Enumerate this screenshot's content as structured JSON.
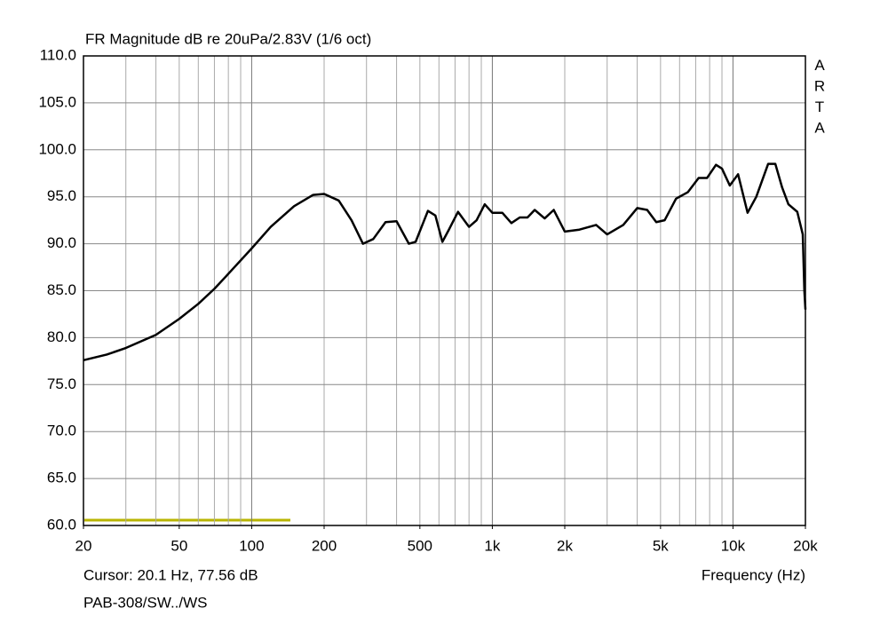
{
  "chart_data": {
    "type": "line",
    "log_x": true,
    "grid": true,
    "title": "FR Magnitude dB re 20uPa/2.83V (1/6 oct)",
    "watermark": "ARTA",
    "cursor": "Cursor: 20.1 Hz, 77.56 dB",
    "xlabel": "Frequency (Hz)",
    "footer": "PAB-308/SW../WS",
    "xlim": [
      20,
      20000
    ],
    "ylim": [
      60,
      110
    ],
    "xticks": [
      20,
      50,
      100,
      200,
      500,
      {
        "value": 1000,
        "label": "1k"
      },
      {
        "value": 2000,
        "label": "2k"
      },
      {
        "value": 5000,
        "label": "5k"
      },
      {
        "value": 10000,
        "label": "10k"
      },
      {
        "value": 20000,
        "label": "20k"
      }
    ],
    "yticks": [
      {
        "value": 60,
        "label": "60.0"
      },
      {
        "value": 65,
        "label": "65.0"
      },
      {
        "value": 70,
        "label": "70.0"
      },
      {
        "value": 75,
        "label": "75.0"
      },
      {
        "value": 80,
        "label": "80.0"
      },
      {
        "value": 85,
        "label": "85.0"
      },
      {
        "value": 90,
        "label": "90.0"
      },
      {
        "value": 95,
        "label": "95.0"
      },
      {
        "value": 100,
        "label": "100.0"
      },
      {
        "value": 105,
        "label": "105.0"
      },
      {
        "value": 110,
        "label": "110.0"
      }
    ],
    "x": [
      20,
      25,
      30,
      40,
      50,
      60,
      70,
      80,
      100,
      120,
      150,
      180,
      200,
      230,
      260,
      290,
      320,
      360,
      400,
      450,
      480,
      540,
      580,
      620,
      660,
      720,
      800,
      860,
      930,
      1000,
      1100,
      1200,
      1300,
      1400,
      1500,
      1650,
      1800,
      2000,
      2300,
      2700,
      3000,
      3500,
      4000,
      4400,
      4800,
      5200,
      5800,
      6500,
      7200,
      7800,
      8500,
      9000,
      9700,
      10500,
      11500,
      12500,
      14000,
      15000,
      16000,
      17000,
      18500,
      19500,
      19800,
      20000
    ],
    "series": [
      {
        "color": "#000000",
        "values": [
          77.6,
          78.2,
          78.9,
          80.3,
          82.0,
          83.6,
          85.2,
          86.8,
          89.5,
          91.8,
          94.0,
          95.2,
          95.3,
          94.6,
          92.5,
          90.0,
          90.5,
          92.3,
          92.4,
          90.0,
          90.2,
          93.5,
          93.0,
          90.2,
          91.5,
          93.4,
          91.8,
          92.5,
          94.2,
          93.3,
          93.3,
          92.2,
          92.8,
          92.8,
          93.6,
          92.7,
          93.6,
          91.3,
          91.5,
          92.0,
          91.0,
          92.0,
          93.8,
          93.6,
          92.3,
          92.5,
          94.8,
          95.5,
          97.0,
          97.0,
          98.4,
          98.0,
          96.2,
          97.4,
          93.3,
          95.0,
          98.5,
          98.5,
          96.0,
          94.2,
          93.4,
          91.0,
          85.0,
          83.0
        ]
      }
    ]
  }
}
